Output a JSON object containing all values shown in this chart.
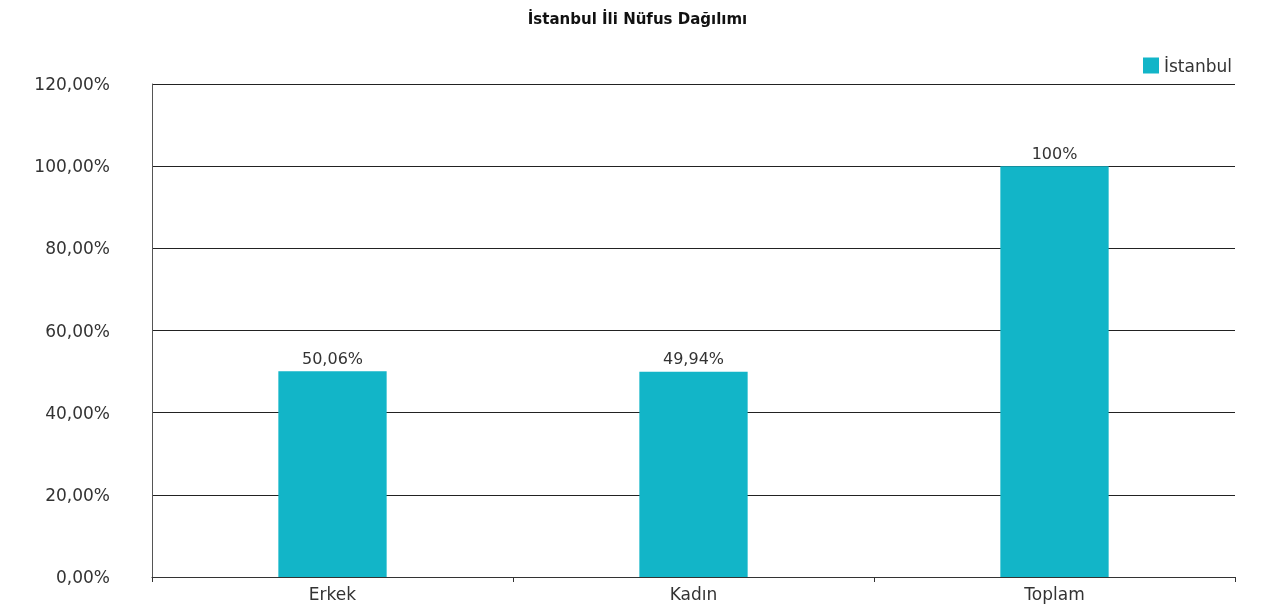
{
  "chart_data": {
    "type": "bar",
    "title": "İstanbul İli Nüfus Dağılımı",
    "categories": [
      "Erkek",
      "Kadın",
      "Toplam"
    ],
    "series": [
      {
        "name": "İstanbul",
        "color": "#12b5c8",
        "values": [
          50.06,
          49.94,
          100
        ],
        "value_labels": [
          "50,06%",
          "49,94%",
          "100%"
        ]
      }
    ],
    "ylim": [
      0,
      120
    ],
    "yticks": [
      {
        "value": 0,
        "label": "0,00%"
      },
      {
        "value": 20,
        "label": "20,00%"
      },
      {
        "value": 40,
        "label": "40,00%"
      },
      {
        "value": 60,
        "label": "60,00%"
      },
      {
        "value": 80,
        "label": "80,00%"
      },
      {
        "value": 100,
        "label": "100,00%"
      },
      {
        "value": 120,
        "label": "120,00%"
      }
    ],
    "grid": "y",
    "legend": "top right"
  }
}
